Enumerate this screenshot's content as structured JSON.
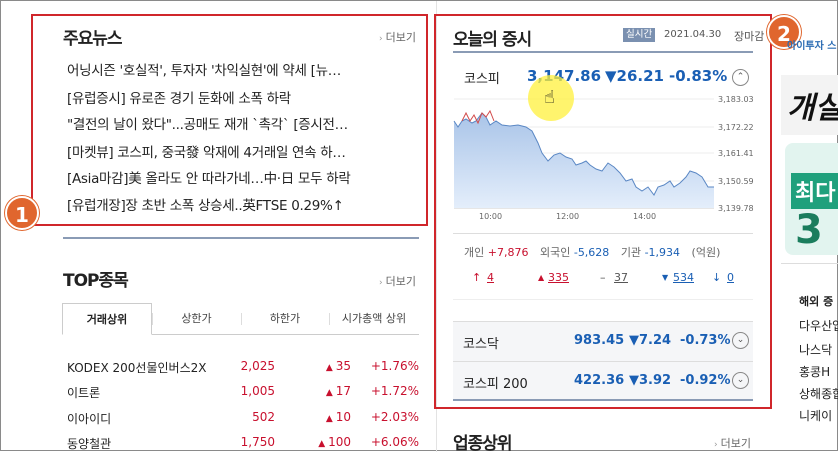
{
  "news": {
    "title": "주요뉴스",
    "more": "더보기",
    "items": [
      "어닝시즌 '호실적', 투자자 '차익실현'에 약세 [뉴…",
      "[유럽증시] 유로존 경기 둔화에 소폭 하락",
      "\"결전의 날이 왔다\"...공매도 재개 `촉각` [증시전…",
      "[마켓뷰] 코스피, 중국發 악재에 4거래일 연속 하…",
      "[Asia마감]美 올라도 안 따라가네…中·日 모두 하락",
      "[유럽개장]장 초반 소폭 상승세..英FTSE 0.29%↑"
    ]
  },
  "top": {
    "title": "TOP종목",
    "more": "더보기",
    "tabs": [
      "거래상위",
      "상한가",
      "하한가",
      "시가총액 상위"
    ],
    "rows": [
      {
        "name": "KODEX 200선물인버스2X",
        "price": "2,025",
        "change": "35",
        "rate": "+1.76%"
      },
      {
        "name": "이트론",
        "price": "1,005",
        "change": "17",
        "rate": "+1.72%"
      },
      {
        "name": "이아이디",
        "price": "502",
        "change": "10",
        "rate": "+2.03%"
      },
      {
        "name": "동양철관",
        "price": "1,750",
        "change": "100",
        "rate": "+6.06%"
      }
    ]
  },
  "market": {
    "title": "오늘의 증시",
    "realtime": "실시간",
    "date": "2021.04.30",
    "status": "장마감",
    "kospi": {
      "name": "코스피",
      "value": "3,147.86",
      "change": "▼26.21",
      "rate": "-0.83%"
    },
    "yticks": [
      "3,183.03",
      "3,172.22",
      "3,161.41",
      "3,150.59",
      "3,139.78"
    ],
    "xticks": [
      "10:00",
      "12:00",
      "14:00"
    ],
    "investors": {
      "individual_label": "개인",
      "individual": "+7,876",
      "foreign_label": "외국인",
      "foreign": "-5,628",
      "inst_label": "기관",
      "inst": "-1,934",
      "unit": "(억원)"
    },
    "breadth": {
      "up_limit": "4",
      "up": "335",
      "flat": "37",
      "down": "534",
      "down_limit": "0"
    },
    "kosdaq": {
      "name": "코스닥",
      "value": "983.45",
      "change": "▼7.24",
      "rate": "-0.73%"
    },
    "kospi200": {
      "name": "코스피 200",
      "value": "422.36",
      "change": "▼3.92",
      "rate": "-0.92%"
    }
  },
  "sector": {
    "title": "업종상위",
    "more": "더보기"
  },
  "annotations": {
    "one": "1",
    "two": "2"
  },
  "ad": {
    "top_text": "아이투자 스",
    "big_text": "개실",
    "green_text": "최다",
    "green_num": "3",
    "overseas_title": "해외 증",
    "overseas_items": [
      "다우산업",
      "나스닥",
      "홍콩H",
      "상해종합",
      "니케이"
    ]
  },
  "colors": {
    "accent_red": "#d0262b",
    "badge_orange": "#e0662e",
    "up": "#c8102e",
    "down": "#1a5fb4"
  }
}
